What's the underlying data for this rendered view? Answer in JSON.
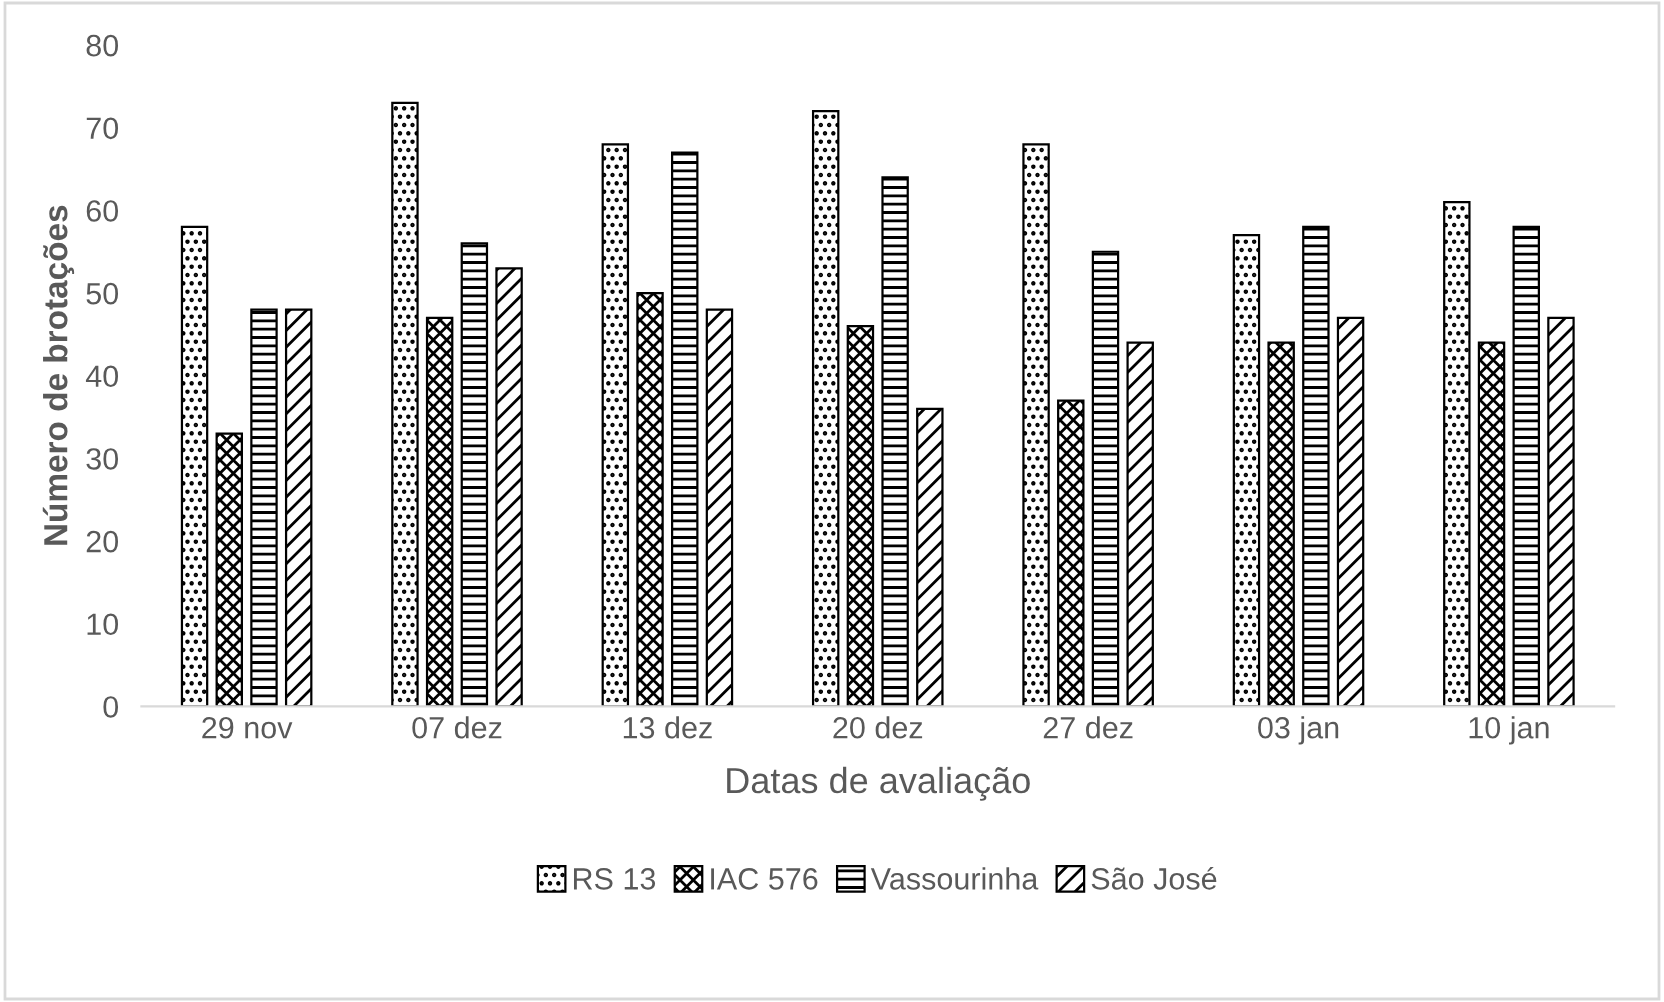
{
  "chart_data": {
    "type": "bar",
    "xlabel": "Datas de avaliação",
    "ylabel": "Número de brotações",
    "categories": [
      "29 nov",
      "07 dez",
      "13 dez",
      "20 dez",
      "27 dez",
      "03 jan",
      "10 jan"
    ],
    "series": [
      {
        "name": "RS 13",
        "color": "#000000",
        "values": [
          58,
          73,
          68,
          72,
          68,
          57,
          61
        ]
      },
      {
        "name": "IAC 576",
        "color": "#000000",
        "values": [
          33,
          47,
          50,
          46,
          37,
          44,
          44
        ]
      },
      {
        "name": "Vassourinha",
        "color": "#000000",
        "values": [
          48,
          56,
          67,
          64,
          55,
          58,
          58
        ]
      },
      {
        "name": "São José",
        "color": "#000000",
        "values": [
          48,
          53,
          48,
          36,
          44,
          47,
          47
        ]
      }
    ],
    "ylim": [
      0,
      80
    ],
    "yticks": [
      0,
      10,
      20,
      30,
      40,
      50,
      60,
      70,
      80
    ],
    "grid": false,
    "legend": "bottom"
  }
}
